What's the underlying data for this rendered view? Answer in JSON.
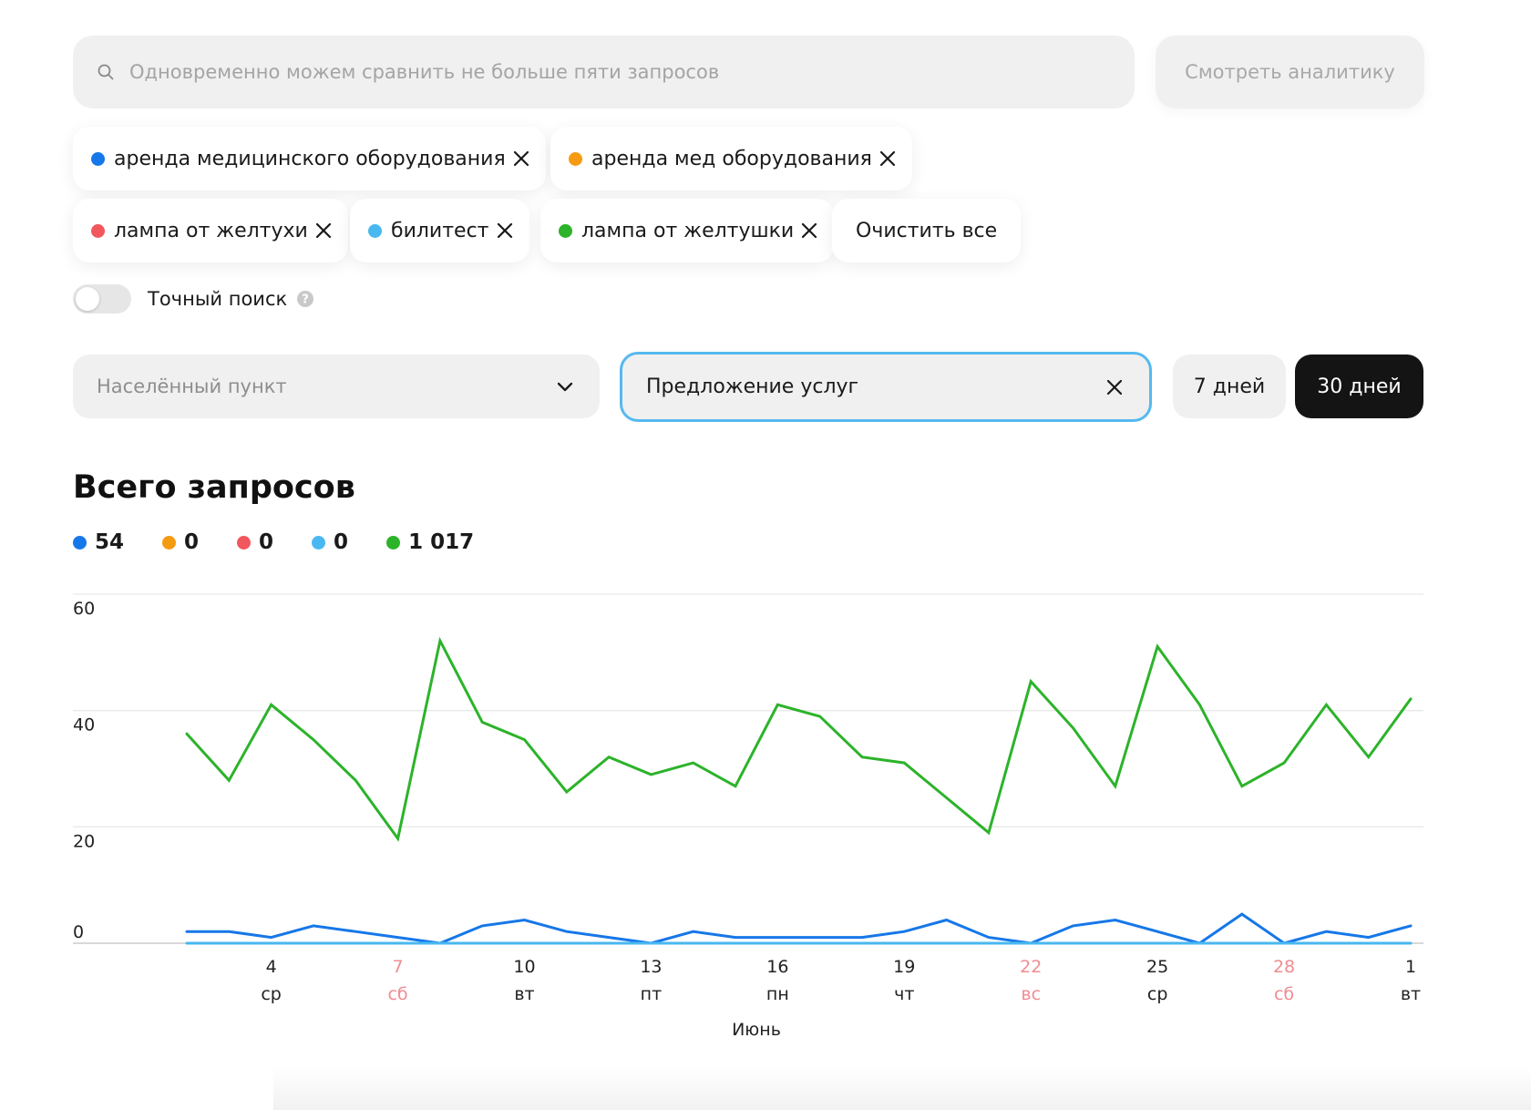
{
  "search": {
    "placeholder": "Одновременно можем сравнить не больше пяти запросов",
    "icon": "search-icon"
  },
  "analytics_button": {
    "label": "Смотреть аналитику"
  },
  "chips": [
    {
      "label": "аренда медицинского оборудования",
      "color": "#1677e8"
    },
    {
      "label": "аренда мед оборудования",
      "color": "#f59b12"
    },
    {
      "label": "лампа от желтухи",
      "color": "#f2575e"
    },
    {
      "label": "билитест",
      "color": "#49b8f0"
    },
    {
      "label": "лампа от желтушки",
      "color": "#2cb32a"
    }
  ],
  "clear_all": {
    "label": "Очистить все"
  },
  "exact_search": {
    "label": "Точный поиск",
    "enabled": false
  },
  "location_select": {
    "value": "Населённый пункт"
  },
  "category_filter": {
    "value": "Предложение услуг"
  },
  "period": {
    "options": [
      "7 дней",
      "30 дней"
    ],
    "selected": "30 дней"
  },
  "summary": {
    "title": "Всего запросов",
    "totals": [
      {
        "value": "54",
        "color": "#1677e8"
      },
      {
        "value": "0",
        "color": "#f59b12"
      },
      {
        "value": "0",
        "color": "#f2575e"
      },
      {
        "value": "0",
        "color": "#49b8f0"
      },
      {
        "value": "1 017",
        "color": "#2cb32a"
      }
    ]
  },
  "chart_data": {
    "type": "line",
    "title": "Всего запросов",
    "xlabel": "Июнь",
    "ylabel": "",
    "ylim": [
      0,
      60
    ],
    "yticks": [
      0,
      20,
      40,
      60
    ],
    "grid": true,
    "x": [
      2,
      3,
      4,
      5,
      6,
      7,
      8,
      9,
      10,
      11,
      12,
      13,
      14,
      15,
      16,
      17,
      18,
      19,
      20,
      21,
      22,
      23,
      24,
      25,
      26,
      27,
      28,
      29,
      30,
      31
    ],
    "xticks": [
      {
        "x": 4,
        "day": "4",
        "weekday": "ср",
        "weekend": false
      },
      {
        "x": 7,
        "day": "7",
        "weekday": "сб",
        "weekend": true
      },
      {
        "x": 10,
        "day": "10",
        "weekday": "вт",
        "weekend": false
      },
      {
        "x": 13,
        "day": "13",
        "weekday": "пт",
        "weekend": false
      },
      {
        "x": 16,
        "day": "16",
        "weekday": "пн",
        "weekend": false
      },
      {
        "x": 19,
        "day": "19",
        "weekday": "чт",
        "weekend": false
      },
      {
        "x": 22,
        "day": "22",
        "weekday": "вс",
        "weekend": true
      },
      {
        "x": 25,
        "day": "25",
        "weekday": "ср",
        "weekend": false
      },
      {
        "x": 28,
        "day": "28",
        "weekday": "сб",
        "weekend": true
      },
      {
        "x": 31,
        "day": "1",
        "weekday": "вт",
        "weekend": false
      }
    ],
    "series": [
      {
        "color": "#2cb32a",
        "values": [
          36,
          28,
          41,
          35,
          28,
          18,
          52,
          38,
          35,
          26,
          32,
          29,
          31,
          27,
          41,
          39,
          32,
          31,
          25,
          19,
          45,
          37,
          27,
          51,
          41,
          27,
          31,
          41,
          32,
          42
        ]
      },
      {
        "color": "#1677e8",
        "values": [
          2,
          2,
          1,
          3,
          2,
          1,
          0,
          3,
          4,
          2,
          1,
          0,
          2,
          1,
          1,
          1,
          1,
          2,
          4,
          1,
          0,
          3,
          4,
          2,
          0,
          5,
          0,
          2,
          1,
          3
        ]
      },
      {
        "color": "#49b8f0",
        "values": [
          0,
          0,
          0,
          0,
          0,
          0,
          0,
          0,
          0,
          0,
          0,
          0,
          0,
          0,
          0,
          0,
          0,
          0,
          0,
          0,
          0,
          0,
          0,
          0,
          0,
          0,
          0,
          0,
          0,
          0
        ]
      }
    ]
  },
  "colors": {
    "accent": "#56b9f0",
    "weekend": "#f08c92",
    "active_period_bg": "#141414"
  }
}
